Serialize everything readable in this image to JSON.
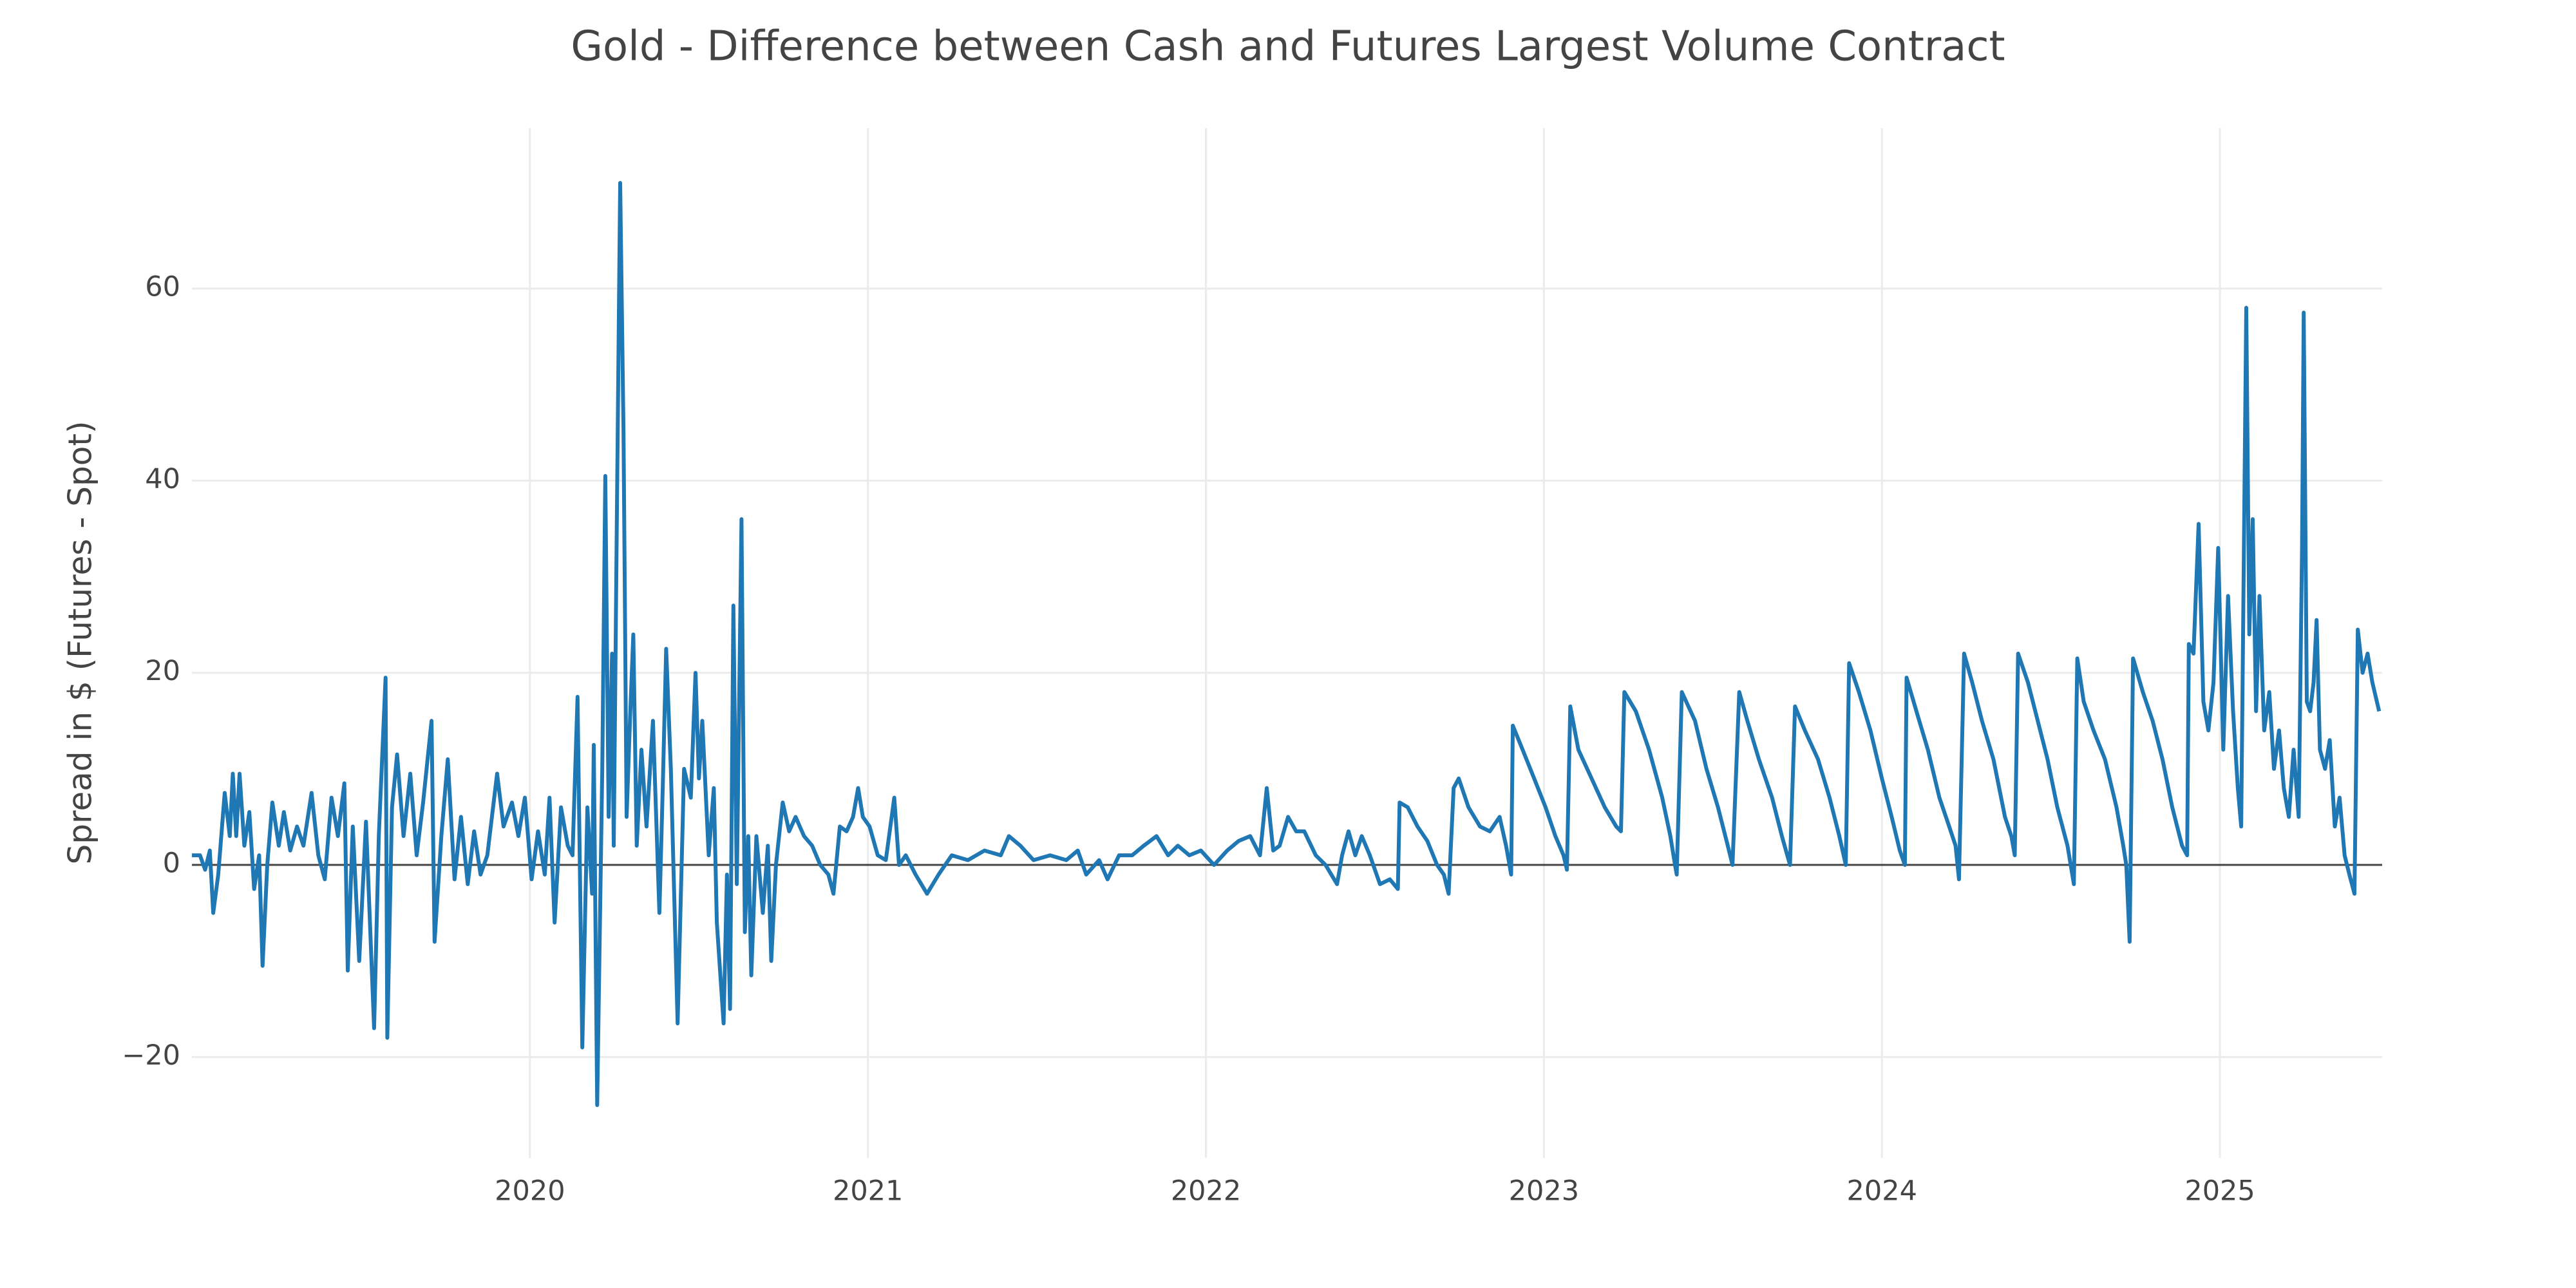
{
  "chart_data": {
    "type": "line",
    "title": "Gold - Difference between Cash and Futures Largest Volume Contract",
    "y_label": "Spread in $ (Futures - Spot)",
    "xlim": [
      2019.0,
      2025.48
    ],
    "xticks": [
      2020,
      2021,
      2022,
      2023,
      2024,
      2025
    ],
    "ylim": [
      -30.5,
      76.7
    ],
    "yticks": [
      {
        "value": -20,
        "label": "−20"
      },
      0,
      20,
      40,
      60
    ],
    "grid": true,
    "zeroline": true,
    "x": [
      2019.0,
      2019.024,
      2019.039,
      2019.053,
      2019.063,
      2019.078,
      2019.097,
      2019.112,
      2019.121,
      2019.131,
      2019.141,
      2019.155,
      2019.17,
      2019.184,
      2019.199,
      2019.209,
      2019.223,
      2019.238,
      2019.257,
      2019.272,
      2019.291,
      2019.311,
      2019.33,
      2019.354,
      2019.374,
      2019.393,
      2019.413,
      2019.432,
      2019.451,
      2019.461,
      2019.476,
      2019.495,
      2019.515,
      2019.539,
      2019.553,
      2019.573,
      2019.578,
      2019.592,
      2019.607,
      2019.626,
      2019.646,
      2019.665,
      2019.684,
      2019.709,
      2019.718,
      2019.738,
      2019.757,
      2019.777,
      2019.796,
      2019.816,
      2019.835,
      2019.854,
      2019.874,
      2019.903,
      2019.922,
      2019.947,
      2019.966,
      2019.985,
      2020.005,
      2020.024,
      2020.044,
      2020.058,
      2020.073,
      2020.092,
      2020.112,
      2020.126,
      2020.141,
      2020.155,
      2020.17,
      2020.184,
      2020.189,
      2020.199,
      2020.214,
      2020.223,
      2020.233,
      2020.243,
      2020.248,
      2020.257,
      2020.267,
      2020.277,
      2020.286,
      2020.296,
      2020.306,
      2020.316,
      2020.33,
      2020.345,
      2020.364,
      2020.383,
      2020.393,
      2020.403,
      2020.417,
      2020.437,
      2020.456,
      2020.476,
      2020.49,
      2020.5,
      2020.51,
      2020.529,
      2020.544,
      2020.553,
      2020.573,
      2020.583,
      2020.592,
      2020.602,
      2020.612,
      2020.626,
      2020.636,
      2020.646,
      2020.655,
      2020.67,
      2020.689,
      2020.704,
      2020.714,
      2020.728,
      2020.748,
      2020.767,
      2020.786,
      2020.811,
      2020.835,
      2020.859,
      2020.883,
      2020.898,
      2020.917,
      2020.937,
      2020.956,
      2020.971,
      2020.985,
      2021.005,
      2021.029,
      2021.053,
      2021.078,
      2021.092,
      2021.112,
      2021.141,
      2021.175,
      2021.209,
      2021.248,
      2021.296,
      2021.345,
      2021.393,
      2021.417,
      2021.451,
      2021.49,
      2021.539,
      2021.587,
      2021.621,
      2021.646,
      2021.684,
      2021.709,
      2021.743,
      2021.782,
      2021.816,
      2021.854,
      2021.888,
      2021.917,
      2021.951,
      2021.985,
      2022.024,
      2022.063,
      2022.097,
      2022.131,
      2022.16,
      2022.18,
      2022.199,
      2022.218,
      2022.243,
      2022.267,
      2022.291,
      2022.325,
      2022.354,
      2022.388,
      2022.403,
      2022.422,
      2022.442,
      2022.461,
      2022.485,
      2022.515,
      2022.544,
      2022.568,
      2022.573,
      2022.597,
      2022.626,
      2022.655,
      2022.684,
      2022.704,
      2022.718,
      2022.733,
      2022.748,
      2022.777,
      2022.811,
      2022.84,
      2022.869,
      2022.888,
      2022.903,
      2022.908,
      2022.937,
      2022.971,
      2023.005,
      2023.034,
      2023.058,
      2023.068,
      2023.078,
      2023.102,
      2023.141,
      2023.18,
      2023.214,
      2023.228,
      2023.238,
      2023.272,
      2023.311,
      2023.35,
      2023.374,
      2023.388,
      2023.393,
      2023.408,
      2023.447,
      2023.481,
      2023.515,
      2023.544,
      2023.558,
      2023.578,
      2023.602,
      2023.636,
      2023.675,
      2023.704,
      2023.728,
      2023.743,
      2023.772,
      2023.811,
      2023.845,
      2023.874,
      2023.893,
      2023.903,
      2023.932,
      2023.966,
      2024.0,
      2024.029,
      2024.053,
      2024.068,
      2024.073,
      2024.102,
      2024.136,
      2024.17,
      2024.199,
      2024.218,
      2024.228,
      2024.243,
      2024.267,
      2024.296,
      2024.33,
      2024.364,
      2024.383,
      2024.393,
      2024.403,
      2024.432,
      2024.461,
      2024.49,
      2024.519,
      2024.549,
      2024.568,
      2024.578,
      2024.597,
      2024.626,
      2024.66,
      2024.694,
      2024.714,
      2024.723,
      2024.733,
      2024.743,
      2024.772,
      2024.801,
      2024.83,
      2024.859,
      2024.888,
      2024.903,
      2024.908,
      2024.922,
      2024.937,
      2024.951,
      2024.966,
      2024.981,
      2024.995,
      2025.01,
      2025.024,
      2025.039,
      2025.053,
      2025.063,
      2025.078,
      2025.087,
      2025.097,
      2025.107,
      2025.117,
      2025.131,
      2025.146,
      2025.16,
      2025.175,
      2025.189,
      2025.204,
      2025.218,
      2025.233,
      2025.243,
      2025.248,
      2025.257,
      2025.267,
      2025.277,
      2025.286,
      2025.296,
      2025.311,
      2025.325,
      2025.34,
      2025.354,
      2025.369,
      2025.383,
      2025.398,
      2025.408,
      2025.422,
      2025.437,
      2025.451,
      2025.471
    ],
    "series": [
      {
        "color": "#1f77b4",
        "values": [
          1,
          1,
          -0.5,
          1.5,
          -5,
          -1,
          7.5,
          3,
          9.5,
          3,
          9.5,
          2,
          5.5,
          -2.5,
          1,
          -10.5,
          0,
          6.5,
          2,
          5.5,
          1.5,
          4,
          2,
          7.5,
          1,
          -1.5,
          7,
          3,
          8.5,
          -11,
          4,
          -10,
          4.5,
          -17,
          3,
          19.5,
          -18,
          6,
          11.5,
          3,
          9.5,
          1,
          6.5,
          15,
          -8,
          3,
          11,
          -1.5,
          5,
          -2,
          3.5,
          -1,
          1,
          9.5,
          4,
          6.5,
          3,
          7,
          -1.5,
          3.5,
          -1,
          7,
          -6,
          6,
          2,
          1,
          17.5,
          -19,
          6,
          -3,
          12.5,
          -25,
          10,
          40.5,
          5,
          22,
          2,
          35,
          71,
          45,
          5,
          15,
          24,
          2,
          12,
          4,
          15,
          -5,
          8,
          22.5,
          10,
          -16.5,
          10,
          7,
          20,
          9,
          15,
          1,
          8,
          -6,
          -16.5,
          -1,
          -15,
          27,
          -2,
          36,
          -7,
          3,
          -11.5,
          3,
          -5,
          2,
          -10,
          0,
          6.5,
          3.5,
          5,
          3,
          2,
          0,
          -1,
          -3,
          4,
          3.5,
          5,
          8,
          5,
          4,
          1,
          0.5,
          7,
          0,
          1,
          -1,
          -3,
          -1,
          1,
          0.5,
          1.5,
          1,
          3,
          2,
          0.5,
          1,
          0.5,
          1.5,
          -1,
          0.5,
          -1.5,
          1,
          1,
          2,
          3,
          1,
          2,
          1,
          1.5,
          0,
          1.5,
          2.5,
          3,
          1,
          8,
          1.5,
          2,
          5,
          3.5,
          3.5,
          1,
          0,
          -2,
          1,
          3.5,
          1,
          3,
          1,
          -2,
          -1.5,
          -2.5,
          6.5,
          6,
          4,
          2.5,
          0,
          -1,
          -3,
          8,
          9,
          6,
          4,
          3.5,
          5,
          2,
          -1,
          14.5,
          12,
          9,
          6,
          3,
          1,
          -0.5,
          16.5,
          12,
          9,
          6,
          4,
          3.5,
          18,
          16,
          12,
          7,
          3,
          0,
          -1,
          18,
          15,
          10,
          6,
          2,
          0,
          18,
          15,
          11,
          7,
          3,
          0,
          16.5,
          14,
          11,
          7,
          3,
          0,
          21,
          18,
          14,
          9,
          5,
          1.5,
          0,
          19.5,
          16,
          12,
          7,
          4,
          2,
          -1.5,
          22,
          19,
          15,
          11,
          5,
          3,
          1,
          22,
          19,
          15,
          11,
          6,
          2,
          -2,
          21.5,
          17,
          14,
          11,
          6,
          2,
          0,
          -8,
          21.5,
          18,
          15,
          11,
          6,
          2,
          1,
          23,
          22,
          35.5,
          17,
          14,
          19,
          33,
          12,
          28,
          16,
          8,
          4,
          58,
          24,
          36,
          16,
          28,
          14,
          18,
          10,
          14,
          8,
          5,
          12,
          5,
          33,
          57.5,
          17,
          16,
          19,
          25.5,
          12,
          10,
          13,
          4,
          7,
          1,
          -1,
          -3,
          24.5,
          20,
          22,
          19,
          16
        ]
      }
    ]
  }
}
